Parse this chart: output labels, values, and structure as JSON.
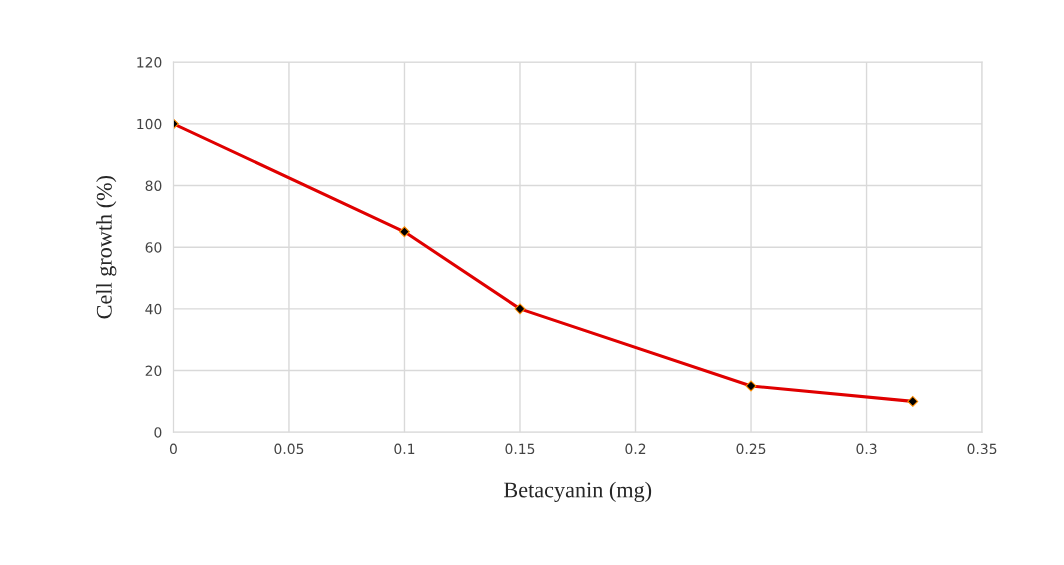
{
  "chart_data": {
    "type": "line",
    "xlabel": "Betacyanin (mg)",
    "ylabel": "Cell growth (%)",
    "x": [
      0,
      0.1,
      0.15,
      0.25,
      0.32
    ],
    "series": [
      {
        "color": "#e00000",
        "values": [
          100,
          65,
          40,
          15,
          10
        ]
      }
    ],
    "xlim": [
      0,
      0.35
    ],
    "xticks": [
      0,
      0.05,
      0.1,
      0.15,
      0.2,
      0.25,
      0.3,
      0.35
    ],
    "ylim": [
      0,
      120
    ],
    "yticks": [
      0,
      20,
      40,
      60,
      80,
      100,
      120
    ],
    "grid": true,
    "marker": "diamond",
    "line_style": "solid"
  }
}
